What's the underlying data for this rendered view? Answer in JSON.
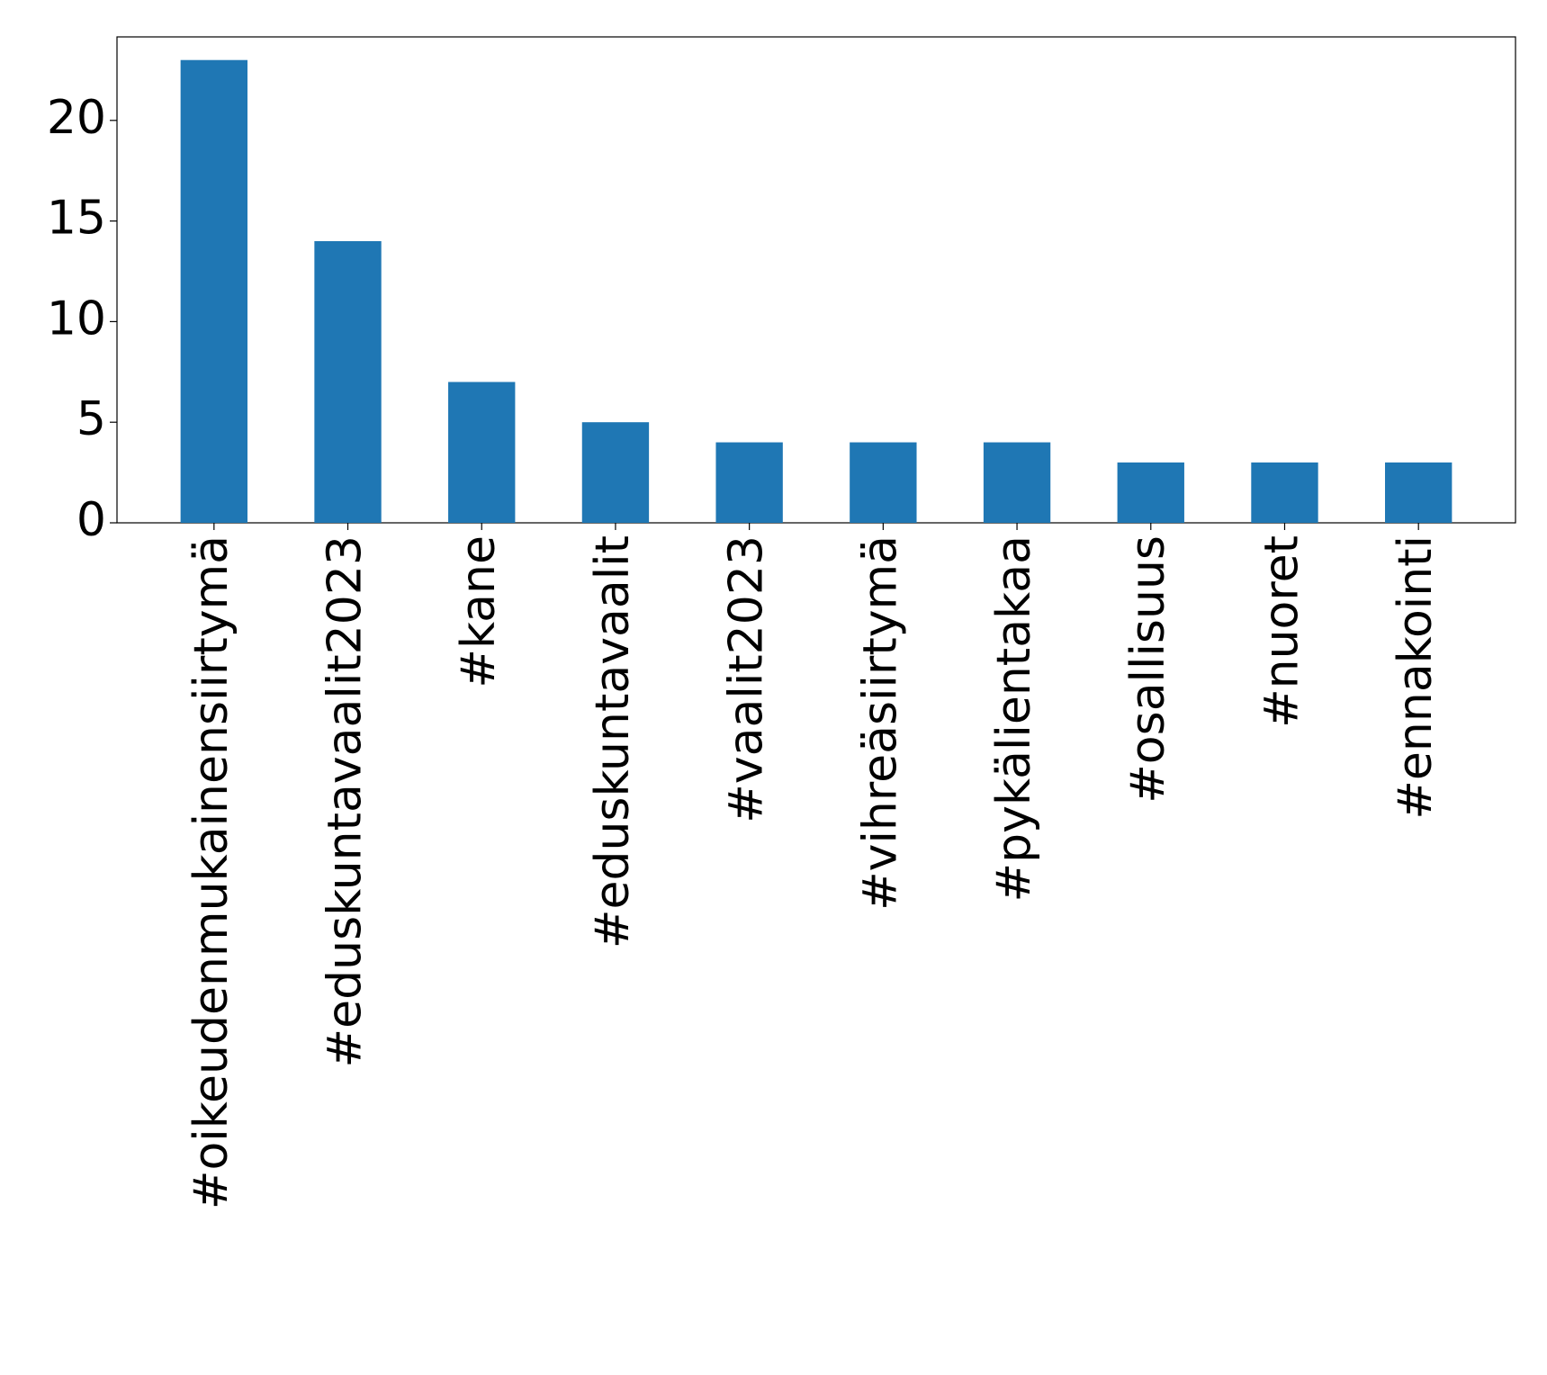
{
  "chart_data": {
    "type": "bar",
    "categories": [
      "#oikeudenmukainensiirtymä",
      "#eduskuntavaalit2023",
      "#kane",
      "#eduskuntavaalit",
      "#vaalit2023",
      "#vihreäsiirtymä",
      "#pykälientakaa",
      "#osallisuus",
      "#nuoret",
      "#ennakointi"
    ],
    "values": [
      23,
      14,
      7,
      5,
      4,
      4,
      4,
      3,
      3,
      3
    ],
    "color": "#1f77b4",
    "ylim": [
      0,
      24.15
    ],
    "yticks": [
      0,
      5,
      10,
      15,
      20
    ],
    "grid": false
  }
}
